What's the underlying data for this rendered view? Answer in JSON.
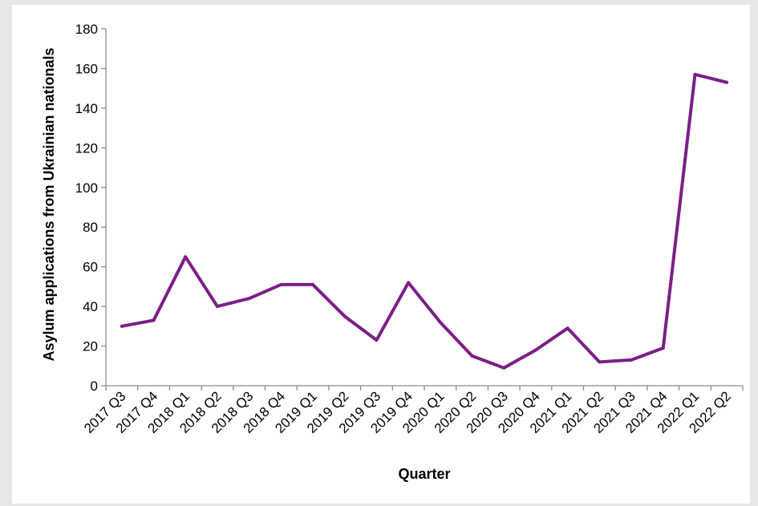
{
  "chart_data": {
    "type": "line",
    "xlabel": "Quarter",
    "ylabel": "Asylum applications from Ukrainian nationals",
    "ylim": [
      0,
      180
    ],
    "yticks": [
      0,
      20,
      40,
      60,
      80,
      100,
      120,
      140,
      160,
      180
    ],
    "grid": false,
    "categories": [
      "2017 Q3",
      "2017 Q4",
      "2018 Q1",
      "2018 Q2",
      "2018 Q3",
      "2018 Q4",
      "2019 Q1",
      "2019 Q2",
      "2019 Q3",
      "2019 Q4",
      "2020 Q1",
      "2020 Q2",
      "2020 Q3",
      "2020 Q4",
      "2021 Q1",
      "2021 Q2",
      "2021 Q3",
      "2021 Q4",
      "2022 Q1",
      "2022 Q2"
    ],
    "series": [
      {
        "color": "#7b1f86",
        "values": [
          30,
          33,
          65,
          40,
          44,
          51,
          51,
          35,
          23,
          52,
          32,
          15,
          9,
          18,
          29,
          12,
          13,
          19,
          157,
          153
        ]
      }
    ]
  }
}
